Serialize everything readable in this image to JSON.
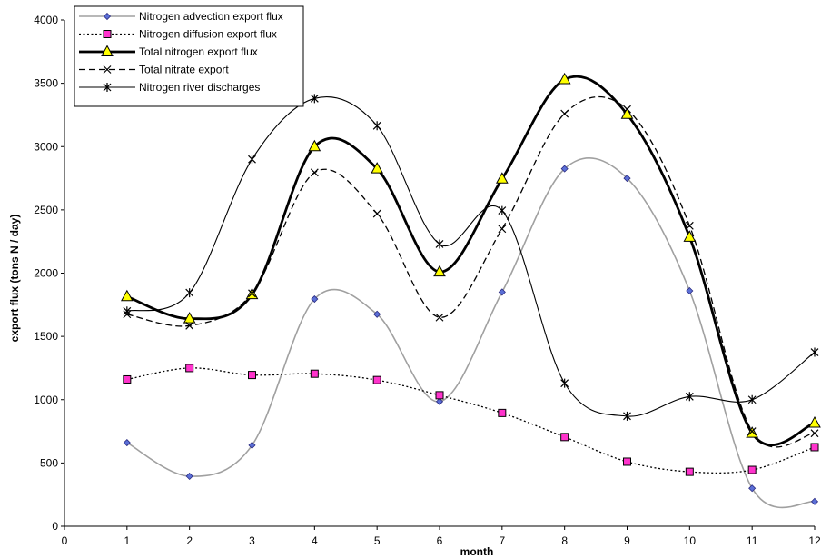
{
  "chart_data": {
    "type": "line",
    "title": "",
    "xlabel": "month",
    "ylabel": "export flux (tons N / day)",
    "xlim": [
      0,
      12
    ],
    "ylim": [
      0,
      4000
    ],
    "xticks": [
      0,
      1,
      2,
      3,
      4,
      5,
      6,
      7,
      8,
      9,
      10,
      11,
      12
    ],
    "yticks": [
      0,
      500,
      1000,
      1500,
      2000,
      2500,
      3000,
      3500,
      4000
    ],
    "grid": false,
    "legend_position": "top-left",
    "x": [
      1,
      2,
      3,
      4,
      5,
      6,
      7,
      8,
      9,
      10,
      11,
      12
    ],
    "series": [
      {
        "name": "Nitrogen advection export flux",
        "color": "#a0a0a0",
        "marker": "diamond",
        "marker_color": "#5b6fd6",
        "line_style": "solid",
        "values": [
          660,
          395,
          640,
          1795,
          1675,
          985,
          1850,
          2825,
          2750,
          1860,
          300,
          195
        ]
      },
      {
        "name": "Nitrogen diffusion export flux",
        "color": "#000000",
        "marker": "square",
        "marker_color": "#ff33cc",
        "line_style": "dotted",
        "values": [
          1160,
          1250,
          1195,
          1205,
          1155,
          1035,
          895,
          705,
          510,
          430,
          445,
          625
        ]
      },
      {
        "name": "Total nitrogen  export flux",
        "color": "#000000",
        "marker": "triangle",
        "marker_color": "#ffff00",
        "line_style": "thick",
        "values": [
          1815,
          1640,
          1830,
          3000,
          2825,
          2010,
          2745,
          3530,
          3255,
          2285,
          735,
          815
        ]
      },
      {
        "name": "Total nitrate export",
        "color": "#000000",
        "marker": "x",
        "marker_color": "#000000",
        "line_style": "dashed",
        "values": [
          1675,
          1585,
          1840,
          2795,
          2470,
          1650,
          2350,
          3260,
          3295,
          2375,
          750,
          735
        ]
      },
      {
        "name": "Nitrogen river discharges",
        "color": "#000000",
        "marker": "star",
        "marker_color": "#000000",
        "line_style": "solid",
        "values": [
          1700,
          1845,
          2900,
          3380,
          3165,
          2230,
          2495,
          1130,
          870,
          1025,
          1000,
          1375
        ]
      }
    ]
  }
}
